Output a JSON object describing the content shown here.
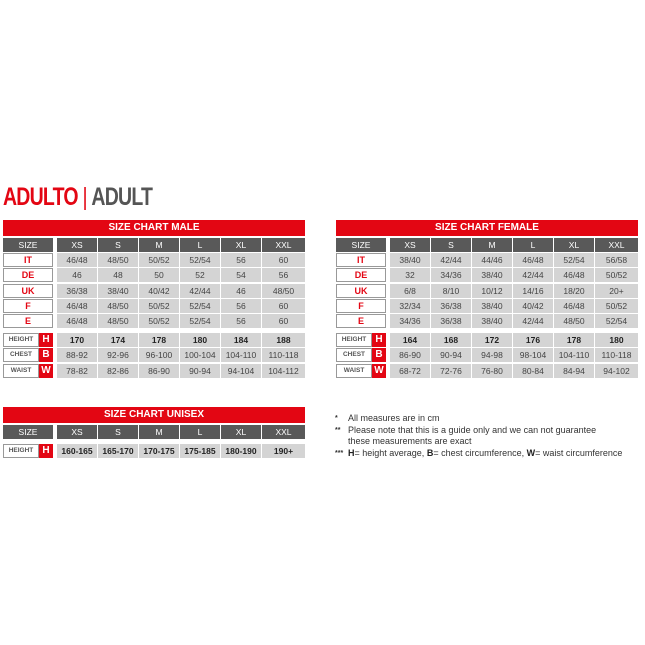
{
  "title": {
    "main": "ADULTO",
    "sep": "|",
    "sub": "ADULT"
  },
  "colors": {
    "brand_red": "#e30613",
    "header_gray": "#595959",
    "cell_gray": "#d4d4d4"
  },
  "tables": [
    {
      "title": "SIZE CHART MALE",
      "size_label": "SIZE",
      "sizes": [
        "XS",
        "S",
        "M",
        "L",
        "XL",
        "XXL"
      ],
      "rows": [
        {
          "label": "IT",
          "values": [
            "46/48",
            "48/50",
            "50/52",
            "52/54",
            "56",
            "60"
          ]
        },
        {
          "label": "DE",
          "values": [
            "46",
            "48",
            "50",
            "52",
            "54",
            "56"
          ]
        },
        {
          "label": "UK",
          "values": [
            "36/38",
            "38/40",
            "40/42",
            "42/44",
            "46",
            "48/50"
          ]
        },
        {
          "label": "F",
          "values": [
            "46/48",
            "48/50",
            "50/52",
            "52/54",
            "56",
            "60"
          ]
        },
        {
          "label": "E",
          "values": [
            "46/48",
            "48/50",
            "50/52",
            "52/54",
            "56",
            "60"
          ]
        }
      ],
      "measures": [
        {
          "label": "HEIGHT",
          "key": "H",
          "values": [
            "170",
            "174",
            "178",
            "180",
            "184",
            "188"
          ]
        },
        {
          "label": "CHEST",
          "key": "B",
          "values": [
            "88-92",
            "92-96",
            "96-100",
            "100-104",
            "104-110",
            "110-118"
          ]
        },
        {
          "label": "WAIST",
          "key": "W",
          "values": [
            "78-82",
            "82-86",
            "86-90",
            "90-94",
            "94-104",
            "104-112"
          ]
        }
      ]
    },
    {
      "title": "SIZE CHART FEMALE",
      "size_label": "SIZE",
      "sizes": [
        "XS",
        "S",
        "M",
        "L",
        "XL",
        "XXL"
      ],
      "rows": [
        {
          "label": "IT",
          "values": [
            "38/40",
            "42/44",
            "44/46",
            "46/48",
            "52/54",
            "56/58"
          ]
        },
        {
          "label": "DE",
          "values": [
            "32",
            "34/36",
            "38/40",
            "42/44",
            "46/48",
            "50/52"
          ]
        },
        {
          "label": "UK",
          "values": [
            "6/8",
            "8/10",
            "10/12",
            "14/16",
            "18/20",
            "20+"
          ]
        },
        {
          "label": "F",
          "values": [
            "32/34",
            "36/38",
            "38/40",
            "40/42",
            "46/48",
            "50/52"
          ]
        },
        {
          "label": "E",
          "values": [
            "34/36",
            "36/38",
            "38/40",
            "42/44",
            "48/50",
            "52/54"
          ]
        }
      ],
      "measures": [
        {
          "label": "HEIGHT",
          "key": "H",
          "values": [
            "164",
            "168",
            "172",
            "176",
            "178",
            "180"
          ]
        },
        {
          "label": "CHEST",
          "key": "B",
          "values": [
            "86-90",
            "90-94",
            "94-98",
            "98-104",
            "104-110",
            "110-118"
          ]
        },
        {
          "label": "WAIST",
          "key": "W",
          "values": [
            "68-72",
            "72-76",
            "76-80",
            "80-84",
            "84-94",
            "94-102"
          ]
        }
      ]
    },
    {
      "title": "SIZE CHART UNISEX",
      "size_label": "SIZE",
      "sizes": [
        "XS",
        "S",
        "M",
        "L",
        "XL",
        "XXL"
      ],
      "rows": [],
      "measures": [
        {
          "label": "HEIGHT",
          "key": "H",
          "values": [
            "160-165",
            "165-170",
            "170-175",
            "175-185",
            "180-190",
            "190+"
          ]
        }
      ]
    }
  ],
  "notes": [
    {
      "stars": "*",
      "text": "All measures are in cm"
    },
    {
      "stars": "**",
      "text": "Please note that this is a guide only and we can not guarantee these measurements are exact"
    },
    {
      "stars": "***",
      "parts": [
        {
          "b": "H",
          "t": "= height average, "
        },
        {
          "b": "B",
          "t": "= chest circumference, "
        },
        {
          "b": "W",
          "t": "= waist circumference"
        }
      ]
    }
  ]
}
